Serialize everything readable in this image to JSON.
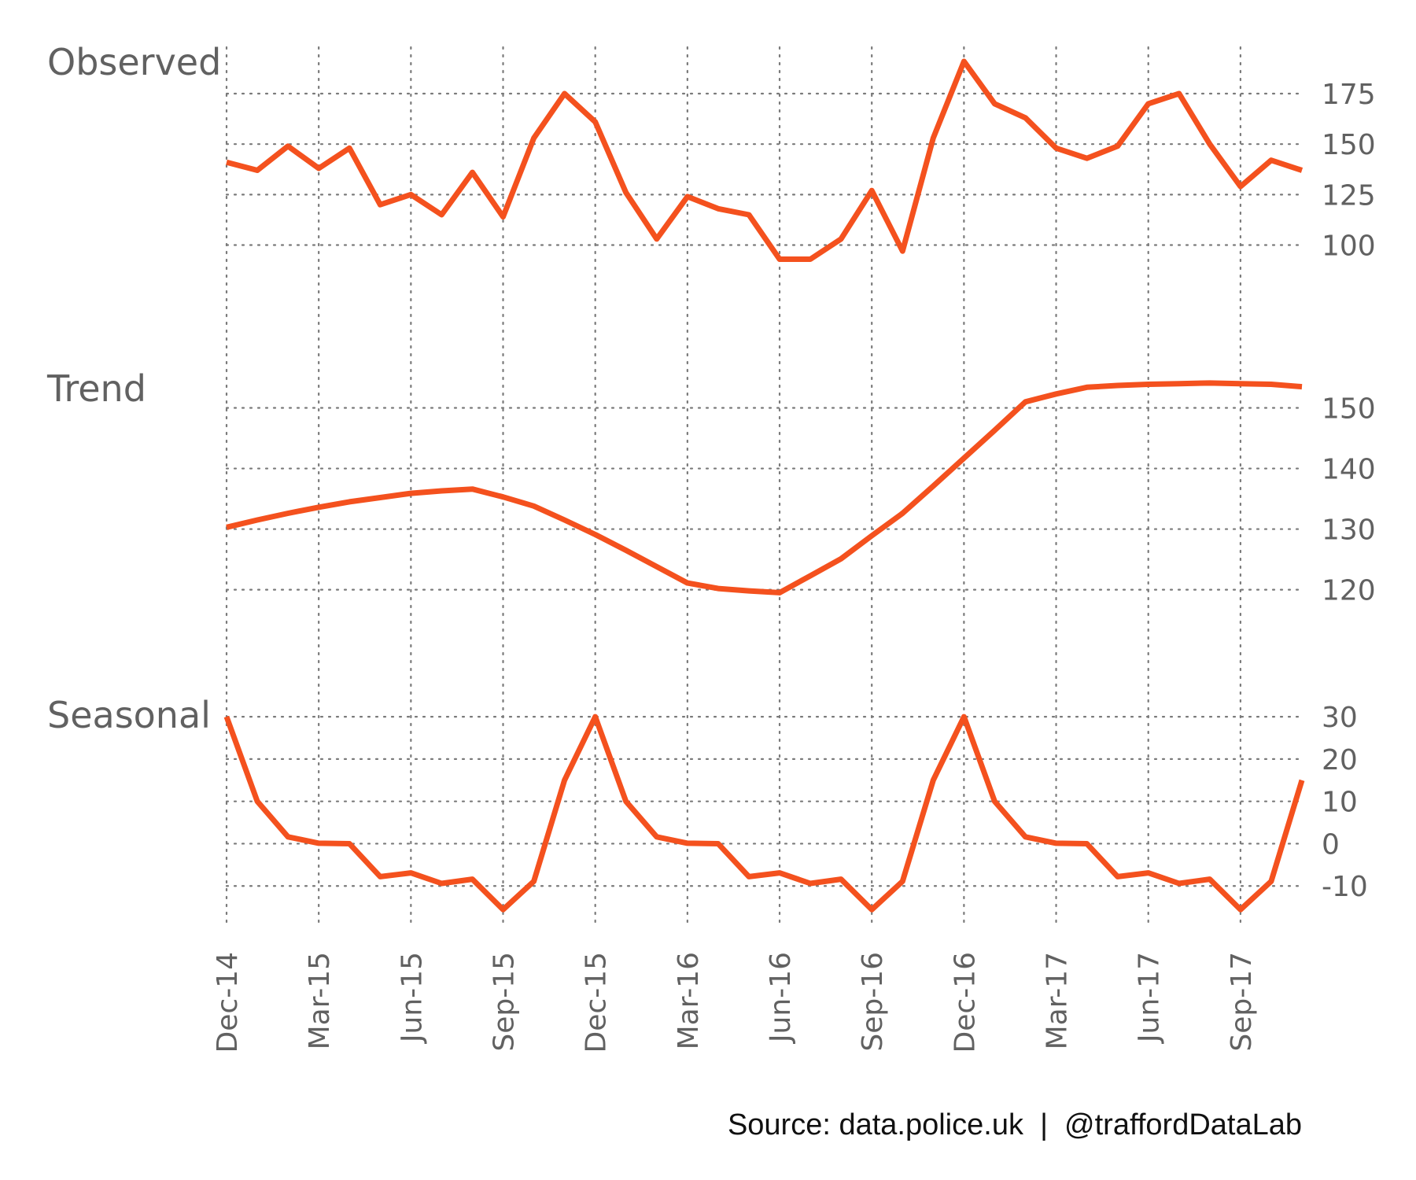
{
  "caption": "Source: data.police.uk  |  @traffordDataLab",
  "colors": {
    "line": "#F4511E",
    "grid": "#7a7a7a",
    "text": "#616161",
    "caption": "#111111"
  },
  "chart_data": {
    "type": "line",
    "grid": true,
    "x_ticks": [
      "Dec-14",
      "Mar-15",
      "Jun-15",
      "Sep-15",
      "Dec-15",
      "Mar-16",
      "Jun-16",
      "Sep-16",
      "Dec-16",
      "Mar-17",
      "Jun-17",
      "Sep-17"
    ],
    "x": [
      "2014-12",
      "2015-01",
      "2015-02",
      "2015-03",
      "2015-04",
      "2015-05",
      "2015-06",
      "2015-07",
      "2015-08",
      "2015-09",
      "2015-10",
      "2015-11",
      "2015-12",
      "2016-01",
      "2016-02",
      "2016-03",
      "2016-04",
      "2016-05",
      "2016-06",
      "2016-07",
      "2016-08",
      "2016-09",
      "2016-10",
      "2016-11",
      "2016-12",
      "2017-01",
      "2017-02",
      "2017-03",
      "2017-04",
      "2017-05",
      "2017-06",
      "2017-07",
      "2017-08",
      "2017-09",
      "2017-10",
      "2017-11"
    ],
    "panels": [
      {
        "title": "Observed",
        "ylim": [
          85,
          198
        ],
        "yticks": [
          100,
          125,
          150,
          175
        ],
        "values": [
          141,
          137,
          149,
          138,
          148,
          120,
          125,
          115,
          136,
          114,
          153,
          175,
          161,
          126,
          103,
          124,
          118,
          115,
          93,
          93,
          103,
          127,
          97,
          153,
          191,
          170,
          163,
          148,
          143,
          149,
          170,
          175,
          150,
          129,
          142,
          137
        ]
      },
      {
        "title": "Trend",
        "ylim": [
          118,
          155
        ],
        "yticks": [
          120,
          130,
          140,
          150
        ],
        "values": [
          130.3,
          131.5,
          132.6,
          133.6,
          134.5,
          135.2,
          135.9,
          136.3,
          136.6,
          135.3,
          133.8,
          131.5,
          129.1,
          126.5,
          123.8,
          121.1,
          120.2,
          119.8,
          119.5,
          122.3,
          125.1,
          128.9,
          132.6,
          137.1,
          141.7,
          146.3,
          151.0,
          152.3,
          153.4,
          153.7,
          153.9,
          154.0,
          154.1,
          154.0,
          153.9,
          153.5
        ]
      },
      {
        "title": "Seasonal",
        "ylim": [
          -20,
          33
        ],
        "yticks": [
          -10,
          0,
          10,
          20,
          30
        ],
        "values": [
          30,
          10,
          1.6,
          0.1,
          0,
          -7.8,
          -6.9,
          -9.4,
          -8.4,
          -15.6,
          -8.9,
          15,
          30,
          10,
          1.6,
          0.1,
          0,
          -7.8,
          -6.9,
          -9.4,
          -8.4,
          -15.6,
          -8.9,
          15,
          30,
          10,
          1.6,
          0.1,
          0,
          -7.8,
          -6.9,
          -9.4,
          -8.4,
          -15.6,
          -8.9,
          15
        ]
      }
    ]
  }
}
